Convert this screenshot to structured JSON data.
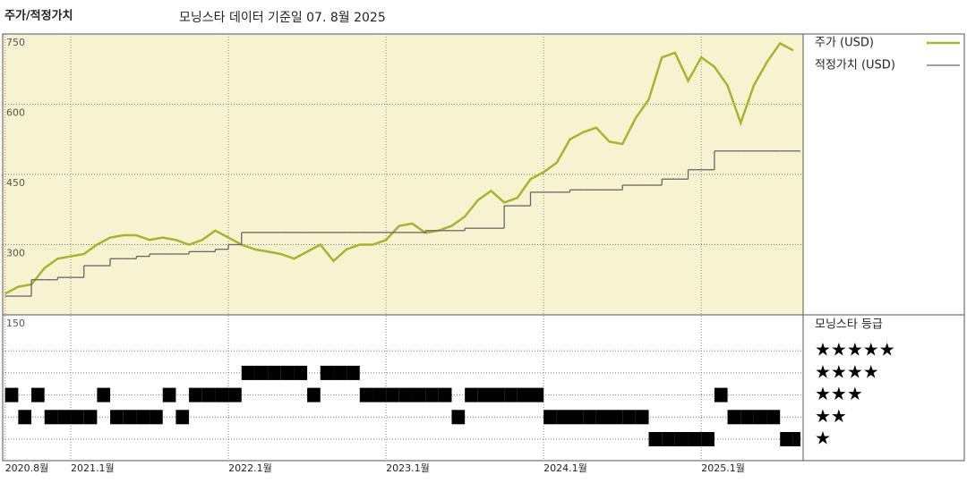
{
  "title": "주가/적정가치",
  "subtitle": "모닝스타 데이터 기준일 07. 8월 2025",
  "chart_data": [
    {
      "type": "line",
      "grid": true,
      "background": "#f7f3d0",
      "x": [
        "2020-08",
        "2020-09",
        "2020-10",
        "2020-11",
        "2020-12",
        "2021-01",
        "2021-02",
        "2021-03",
        "2021-04",
        "2021-05",
        "2021-06",
        "2021-07",
        "2021-08",
        "2021-09",
        "2021-10",
        "2021-11",
        "2021-12",
        "2022-01",
        "2022-02",
        "2022-03",
        "2022-04",
        "2022-05",
        "2022-06",
        "2022-07",
        "2022-08",
        "2022-09",
        "2022-10",
        "2022-11",
        "2022-12",
        "2023-01",
        "2023-02",
        "2023-03",
        "2023-04",
        "2023-05",
        "2023-06",
        "2023-07",
        "2023-08",
        "2023-09",
        "2023-10",
        "2023-11",
        "2023-12",
        "2024-01",
        "2024-02",
        "2024-03",
        "2024-04",
        "2024-05",
        "2024-06",
        "2024-07",
        "2024-08",
        "2024-09",
        "2024-10",
        "2024-11",
        "2024-12",
        "2025-01",
        "2025-02",
        "2025-03",
        "2025-04",
        "2025-05",
        "2025-06",
        "2025-07",
        "2025-08"
      ],
      "ylim": [
        150,
        750
      ],
      "yticks": [
        150,
        300,
        450,
        600,
        750
      ],
      "series": [
        {
          "name": "주가 (USD)",
          "color": "#a9b42c",
          "style": "line",
          "values": [
            195,
            210,
            215,
            250,
            270,
            275,
            280,
            300,
            315,
            320,
            320,
            310,
            315,
            310,
            300,
            310,
            330,
            315,
            300,
            290,
            285,
            280,
            270,
            285,
            300,
            265,
            290,
            300,
            300,
            310,
            340,
            345,
            325,
            330,
            340,
            360,
            395,
            415,
            390,
            400,
            440,
            455,
            475,
            525,
            540,
            550,
            520,
            515,
            570,
            610,
            700,
            710,
            650,
            700,
            680,
            640,
            560,
            640,
            690,
            730,
            715
          ]
        },
        {
          "name": "적정가치 (USD)",
          "color": "#666666",
          "style": "step",
          "values": [
            190,
            190,
            225,
            225,
            230,
            230,
            255,
            255,
            270,
            270,
            275,
            280,
            280,
            280,
            285,
            285,
            290,
            300,
            326,
            326,
            326,
            326,
            326,
            326,
            326,
            326,
            326,
            326,
            326,
            326,
            326,
            326,
            330,
            330,
            330,
            335,
            335,
            335,
            383,
            383,
            412,
            412,
            412,
            417,
            417,
            417,
            417,
            427,
            427,
            427,
            440,
            440,
            460,
            460,
            500,
            500,
            500,
            500,
            500,
            500,
            500
          ]
        }
      ]
    },
    {
      "type": "rating",
      "title": "모닝스타 등급",
      "color": "#000000",
      "x": [
        "2020-08",
        "2020-09",
        "2020-10",
        "2020-11",
        "2020-12",
        "2021-01",
        "2021-02",
        "2021-03",
        "2021-04",
        "2021-05",
        "2021-06",
        "2021-07",
        "2021-08",
        "2021-09",
        "2021-10",
        "2021-11",
        "2021-12",
        "2022-01",
        "2022-02",
        "2022-03",
        "2022-04",
        "2022-05",
        "2022-06",
        "2022-07",
        "2022-08",
        "2022-09",
        "2022-10",
        "2022-11",
        "2022-12",
        "2023-01",
        "2023-02",
        "2023-03",
        "2023-04",
        "2023-05",
        "2023-06",
        "2023-07",
        "2023-08",
        "2023-09",
        "2023-10",
        "2023-11",
        "2023-12",
        "2024-01",
        "2024-02",
        "2024-03",
        "2024-04",
        "2024-05",
        "2024-06",
        "2024-07",
        "2024-08",
        "2024-09",
        "2024-10",
        "2024-11",
        "2024-12",
        "2025-01",
        "2025-02",
        "2025-03",
        "2025-04",
        "2025-05",
        "2025-06",
        "2025-07",
        "2025-08"
      ],
      "values": [
        3,
        2,
        3,
        2,
        2,
        2,
        2,
        3,
        2,
        2,
        2,
        2,
        3,
        2,
        3,
        3,
        3,
        3,
        4,
        4,
        4,
        4,
        4,
        3,
        4,
        4,
        4,
        3,
        3,
        3,
        3,
        3,
        3,
        3,
        2,
        3,
        3,
        3,
        3,
        3,
        3,
        2,
        2,
        2,
        2,
        2,
        2,
        2,
        2,
        1,
        1,
        1,
        1,
        1,
        3,
        2,
        2,
        2,
        2,
        1,
        1
      ],
      "yticks": [
        {
          "value": 5,
          "label": "★★★★★"
        },
        {
          "value": 4,
          "label": "★★★★"
        },
        {
          "value": 3,
          "label": "★★★"
        },
        {
          "value": 2,
          "label": "★★"
        },
        {
          "value": 1,
          "label": "★"
        }
      ],
      "xticks": [
        {
          "value": "2020-08",
          "label": "2020.8월"
        },
        {
          "value": "2021-01",
          "label": "2021.1월"
        },
        {
          "value": "2022-01",
          "label": "2022.1월"
        },
        {
          "value": "2023-01",
          "label": "2023.1월"
        },
        {
          "value": "2024-01",
          "label": "2024.1월"
        },
        {
          "value": "2025-01",
          "label": "2025.1월"
        }
      ]
    }
  ]
}
